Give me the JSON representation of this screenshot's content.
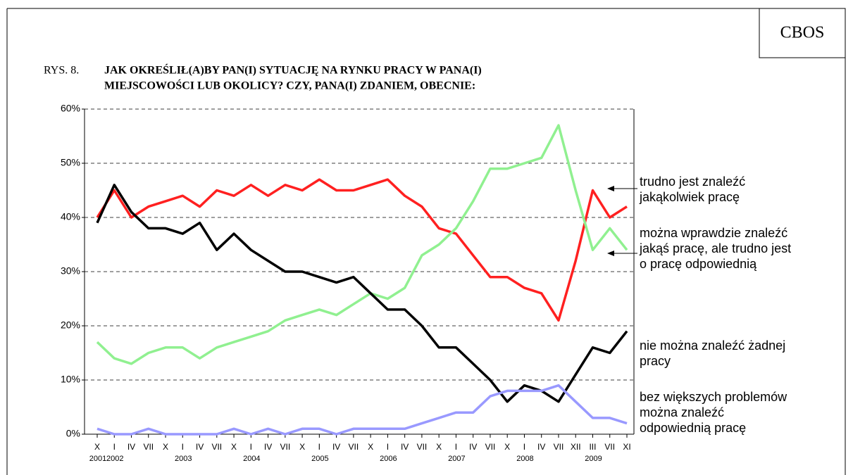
{
  "source": "CBOS",
  "figure_label": "RYS. 8.",
  "title_lines": [
    "JAK OKREŚLIŁ(A)BY PAN(I) SYTUACJĘ NA RYNKU PRACY W PANA(I)",
    "MIEJSCOWOŚCI LUB OKOLICY? CZY, PANA(I) ZDANIEM, OBECNIE:"
  ],
  "chart_data": {
    "type": "line",
    "categories": [
      "X",
      "I",
      "IV",
      "VII",
      "X",
      "I",
      "IV",
      "VII",
      "X",
      "I",
      "IV",
      "VII",
      "X",
      "I",
      "IV",
      "VII",
      "X",
      "I",
      "IV",
      "VII",
      "X",
      "I",
      "IV",
      "VII",
      "X",
      "I",
      "IV",
      "VII",
      "XII",
      "III",
      "VII",
      "XI"
    ],
    "years": [
      "2001",
      "2002",
      null,
      null,
      null,
      "2003",
      null,
      null,
      null,
      "2004",
      null,
      null,
      null,
      "2005",
      null,
      null,
      null,
      "2006",
      null,
      null,
      null,
      "2007",
      null,
      null,
      null,
      "2008",
      null,
      null,
      null,
      "2009",
      null,
      null
    ],
    "ylim": [
      0,
      60
    ],
    "yticks": [
      {
        "value": 0,
        "label": "0%"
      },
      {
        "value": 10,
        "label": "10%"
      },
      {
        "value": 20,
        "label": "20%"
      },
      {
        "value": 30,
        "label": "30%"
      },
      {
        "value": 40,
        "label": "40%"
      },
      {
        "value": 50,
        "label": "50%"
      },
      {
        "value": 60,
        "label": "60%"
      }
    ],
    "grid": true,
    "series": [
      {
        "name": "trudno jest znaleźć jakąkolwiek pracę",
        "color": "#ff2020",
        "values": [
          40,
          45,
          40,
          42,
          43,
          44,
          42,
          45,
          44,
          46,
          44,
          46,
          45,
          47,
          45,
          45,
          46,
          47,
          44,
          42,
          38,
          37,
          33,
          29,
          29,
          27,
          26,
          21,
          32,
          45,
          40,
          42
        ]
      },
      {
        "name": "można wprawdzie znaleźć jakąś pracę, ale trudno jest o pracę odpowiednią",
        "color": "#90f090",
        "values": [
          17,
          14,
          13,
          15,
          16,
          16,
          14,
          16,
          17,
          18,
          19,
          21,
          22,
          23,
          22,
          24,
          26,
          25,
          27,
          33,
          35,
          38,
          43,
          49,
          49,
          50,
          51,
          57,
          45,
          34,
          38,
          34
        ]
      },
      {
        "name": "nie można znaleźć żadnej pracy",
        "color": "#000000",
        "values": [
          39,
          46,
          41,
          38,
          38,
          37,
          39,
          34,
          37,
          34,
          32,
          30,
          30,
          29,
          28,
          29,
          26,
          23,
          23,
          20,
          16,
          16,
          13,
          10,
          6,
          9,
          8,
          6,
          11,
          16,
          15,
          19
        ]
      },
      {
        "name": "bez większych problemów można znaleźć odpowiednią pracę",
        "color": "#9999ff",
        "values": [
          1,
          0,
          0,
          1,
          0,
          0,
          0,
          0,
          1,
          0,
          1,
          0,
          1,
          1,
          0,
          1,
          1,
          1,
          1,
          2,
          3,
          4,
          4,
          7,
          8,
          8,
          8,
          9,
          6,
          3,
          3,
          2
        ]
      }
    ]
  }
}
